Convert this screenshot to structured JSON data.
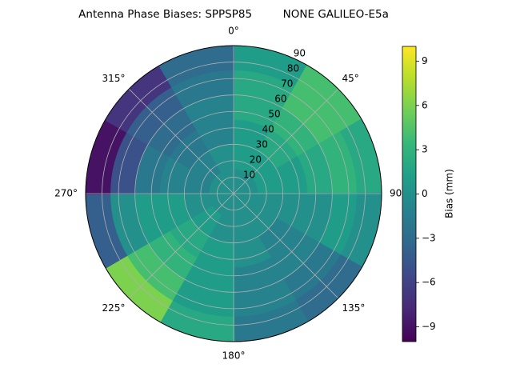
{
  "chart_data": {
    "type": "polar-contour",
    "title": "Antenna Phase Biases: SPPSP85         NONE GALILEO-E5a",
    "azimuths": [
      15,
      45,
      75,
      105,
      135,
      165,
      195,
      225,
      255,
      285,
      315,
      345
    ],
    "zeniths": [
      7.5,
      22.5,
      37.5,
      52.5,
      67.5,
      82.5
    ],
    "values": [
      [
        0,
        1,
        1,
        2,
        2,
        1
      ],
      [
        0,
        1,
        2,
        3,
        4,
        4
      ],
      [
        0,
        1,
        1,
        2,
        3,
        2
      ],
      [
        0,
        0,
        0,
        0,
        1,
        0
      ],
      [
        0,
        0,
        -1,
        -1,
        -2,
        -3
      ],
      [
        0,
        0,
        0,
        -1,
        -1,
        -2
      ],
      [
        0,
        0,
        1,
        1,
        1,
        2
      ],
      [
        0,
        1,
        2,
        3,
        4,
        6
      ],
      [
        0,
        0,
        1,
        1,
        0,
        -4
      ],
      [
        0,
        -1,
        -1,
        -2,
        -5,
        -9
      ],
      [
        0,
        -1,
        -2,
        -3,
        -4,
        -7
      ],
      [
        0,
        0,
        -1,
        -1,
        -2,
        -3
      ]
    ],
    "rlim": [
      0,
      90
    ],
    "rticks": [
      10,
      20,
      30,
      40,
      50,
      60,
      70,
      80,
      90
    ],
    "thetaticks": [
      {
        "value": 0,
        "label": "0°"
      },
      {
        "value": 45,
        "label": "45°"
      },
      90,
      {
        "value": 135,
        "label": "135°"
      },
      {
        "value": 180,
        "label": "180°"
      },
      {
        "value": 225,
        "label": "225°"
      },
      {
        "value": 270,
        "label": "270°"
      },
      {
        "value": 315,
        "label": "315°"
      }
    ],
    "colormap": "viridis",
    "clim": [
      -10,
      10
    ],
    "cticks": [
      {
        "value": -9,
        "label": "−9"
      },
      {
        "value": -6,
        "label": "−6"
      },
      {
        "value": -3,
        "label": "−3"
      },
      0,
      3,
      6,
      9
    ],
    "colorbar_label": "Bias (mm)",
    "grid": true
  }
}
